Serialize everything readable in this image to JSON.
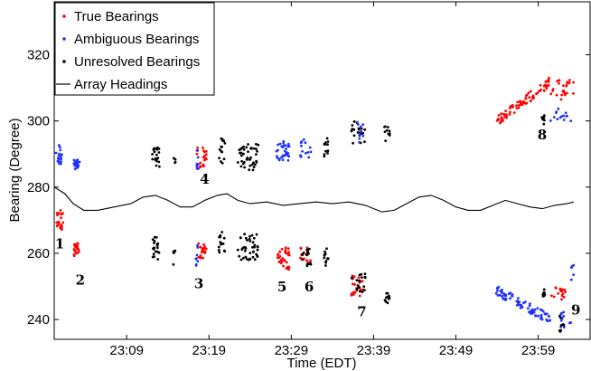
{
  "chart_data": {
    "type": "scatter",
    "xlabel": "Time (EDT)",
    "ylabel": "Bearing (Degree)",
    "x_tick_labels": [
      "23:09",
      "23:19",
      "23:29",
      "23:39",
      "23:49",
      "23:59"
    ],
    "x_ticks_minutes_after_2300": [
      9,
      19,
      29,
      39,
      49,
      59
    ],
    "xlim_minutes_after_2300": [
      0.2,
      65.3
    ],
    "y_ticks": [
      240,
      260,
      280,
      300,
      320
    ],
    "ylim": [
      234,
      336
    ],
    "grid": false,
    "legend_position": "top-left",
    "series_colors": {
      "true": "#ff0000",
      "ambiguous": "#1f2fff",
      "unresolved": "#000000",
      "heading": "#000000"
    },
    "legend": [
      {
        "label": "True Bearings",
        "kind": "dot",
        "color": "#ff0000"
      },
      {
        "label": "Ambiguous Bearings",
        "kind": "dot",
        "color": "#1f2fff"
      },
      {
        "label": "Unresolved Bearings",
        "kind": "dot",
        "color": "#000000"
      },
      {
        "label": "Array Headings",
        "kind": "line",
        "color": "#000000"
      }
    ],
    "clusters": [
      {
        "series": "true",
        "x": [
          0.4,
          1.3
        ],
        "y": [
          266,
          273
        ],
        "n": 22
      },
      {
        "series": "ambiguous",
        "x": [
          0.4,
          1.3
        ],
        "y": [
          287,
          293
        ],
        "n": 18
      },
      {
        "series": "true",
        "x": [
          2.6,
          3.2
        ],
        "y": [
          258,
          263
        ],
        "n": 20
      },
      {
        "series": "ambiguous",
        "x": [
          2.5,
          3.3
        ],
        "y": [
          285.5,
          288.5
        ],
        "n": 20
      },
      {
        "series": "unresolved",
        "x": [
          12.1,
          13.0
        ],
        "y": [
          258,
          265
        ],
        "n": 20
      },
      {
        "series": "unresolved",
        "x": [
          12.1,
          13.0
        ],
        "y": [
          286,
          292
        ],
        "n": 20
      },
      {
        "series": "unresolved",
        "x": [
          14.6,
          15.0
        ],
        "y": [
          256,
          261
        ],
        "n": 5
      },
      {
        "series": "unresolved",
        "x": [
          14.6,
          15.0
        ],
        "y": [
          287,
          289
        ],
        "n": 4
      },
      {
        "series": "ambiguous",
        "x": [
          17.4,
          17.7
        ],
        "y": [
          256,
          263
        ],
        "n": 8
      },
      {
        "series": "true",
        "x": [
          17.7,
          18.7
        ],
        "y": [
          258,
          263
        ],
        "n": 20
      },
      {
        "series": "true",
        "x": [
          17.5,
          18.7
        ],
        "y": [
          286,
          292
        ],
        "n": 20
      },
      {
        "series": "ambiguous",
        "x": [
          17.5,
          17.8
        ],
        "y": [
          285,
          292
        ],
        "n": 8
      },
      {
        "series": "unresolved",
        "x": [
          20.2,
          21.0
        ],
        "y": [
          260,
          267
        ],
        "n": 14
      },
      {
        "series": "unresolved",
        "x": [
          20.2,
          21.0
        ],
        "y": [
          287,
          295
        ],
        "n": 14
      },
      {
        "series": "unresolved",
        "x": [
          22.5,
          25.0
        ],
        "y": [
          258,
          266
        ],
        "n": 42
      },
      {
        "series": "unresolved",
        "x": [
          22.5,
          25.0
        ],
        "y": [
          285,
          293
        ],
        "n": 42
      },
      {
        "series": "true",
        "x": [
          27.2,
          28.8
        ],
        "y": [
          255,
          262
        ],
        "n": 32
      },
      {
        "series": "ambiguous",
        "x": [
          27.2,
          28.8
        ],
        "y": [
          288,
          294
        ],
        "n": 32
      },
      {
        "series": "true",
        "x": [
          30.1,
          31.5
        ],
        "y": [
          257,
          262
        ],
        "n": 14
      },
      {
        "series": "unresolved",
        "x": [
          30.3,
          31.5
        ],
        "y": [
          256,
          262
        ],
        "n": 14
      },
      {
        "series": "ambiguous",
        "x": [
          30.1,
          31.5
        ],
        "y": [
          289,
          295
        ],
        "n": 14
      },
      {
        "series": "unresolved",
        "x": [
          32.9,
          33.5
        ],
        "y": [
          256,
          262
        ],
        "n": 12
      },
      {
        "series": "unresolved",
        "x": [
          32.9,
          33.5
        ],
        "y": [
          289,
          295
        ],
        "n": 12
      },
      {
        "series": "true",
        "x": [
          36.3,
          37.8
        ],
        "y": [
          247,
          254
        ],
        "n": 22
      },
      {
        "series": "unresolved",
        "x": [
          36.3,
          38.0
        ],
        "y": [
          248,
          254
        ],
        "n": 18
      },
      {
        "series": "unresolved",
        "x": [
          36.3,
          38.0
        ],
        "y": [
          293,
          300
        ],
        "n": 22
      },
      {
        "series": "ambiguous",
        "x": [
          36.8,
          37.8
        ],
        "y": [
          293,
          300
        ],
        "n": 10
      },
      {
        "series": "unresolved",
        "x": [
          40.3,
          41.0
        ],
        "y": [
          244,
          249
        ],
        "n": 10
      },
      {
        "series": "unresolved",
        "x": [
          40.3,
          41.0
        ],
        "y": [
          294,
          299
        ],
        "n": 10
      },
      {
        "series": "true",
        "x": [
          54.0,
          60.5
        ],
        "y": [
          300,
          312
        ],
        "n": 80,
        "trend": 1
      },
      {
        "series": "ambiguous",
        "x": [
          53.8,
          60.5
        ],
        "y": [
          240,
          249
        ],
        "n": 80,
        "trend": -1
      },
      {
        "series": "unresolved",
        "x": [
          59.4,
          59.8
        ],
        "y": [
          247,
          250
        ],
        "n": 8
      },
      {
        "series": "unresolved",
        "x": [
          59.4,
          59.8
        ],
        "y": [
          299,
          302
        ],
        "n": 8
      },
      {
        "series": "true",
        "x": [
          60.5,
          62.3
        ],
        "y": [
          246,
          250
        ],
        "n": 16
      },
      {
        "series": "true",
        "x": [
          60.5,
          63.3
        ],
        "y": [
          306,
          313
        ],
        "n": 24
      },
      {
        "series": "ambiguous",
        "x": [
          60.5,
          63.0
        ],
        "y": [
          300,
          304
        ],
        "n": 14
      },
      {
        "series": "ambiguous",
        "x": [
          61.5,
          63.0
        ],
        "y": [
          237,
          243
        ],
        "n": 12
      },
      {
        "series": "ambiguous",
        "x": [
          63.0,
          63.3
        ],
        "y": [
          252,
          257
        ],
        "n": 5
      },
      {
        "series": "unresolved",
        "x": [
          61.5,
          62.2
        ],
        "y": [
          236,
          242
        ],
        "n": 8
      }
    ],
    "array_heading": {
      "x": [
        0.2,
        1.5,
        2.5,
        3.8,
        5.5,
        7.5,
        9.5,
        11.0,
        12.5,
        14.0,
        15.5,
        17.0,
        18.5,
        20.0,
        21.2,
        22.5,
        24.0,
        26.0,
        28.0,
        30.0,
        32.0,
        34.0,
        36.0,
        38.0,
        40.0,
        41.5,
        43.0,
        44.5,
        46.0,
        47.5,
        49.0,
        50.5,
        52.0,
        53.5,
        55.0,
        56.5,
        58.0,
        59.5,
        61.0,
        62.5,
        63.3
      ],
      "y": [
        280,
        278,
        275,
        273,
        273,
        274,
        275,
        277,
        277.5,
        276,
        274,
        274,
        276,
        277.5,
        278,
        276,
        275,
        275.5,
        274.5,
        275,
        275.5,
        275,
        275.5,
        274.5,
        272.5,
        273,
        275,
        277,
        277.5,
        276,
        274,
        273,
        273,
        274.5,
        276,
        275,
        274,
        273.5,
        274.5,
        275,
        275.5
      ]
    },
    "annotations": [
      {
        "text": "1",
        "x": 0.3,
        "y": 261.5
      },
      {
        "text": "2",
        "x": 2.8,
        "y": 250.5
      },
      {
        "text": "3",
        "x": 17.2,
        "y": 249.5
      },
      {
        "text": "4",
        "x": 17.9,
        "y": 281
      },
      {
        "text": "5",
        "x": 27.3,
        "y": 248.5
      },
      {
        "text": "6",
        "x": 30.6,
        "y": 248.5
      },
      {
        "text": "7",
        "x": 37.0,
        "y": 241
      },
      {
        "text": "8",
        "x": 58.9,
        "y": 294.5
      },
      {
        "text": "9",
        "x": 63.0,
        "y": 241.5
      }
    ]
  }
}
